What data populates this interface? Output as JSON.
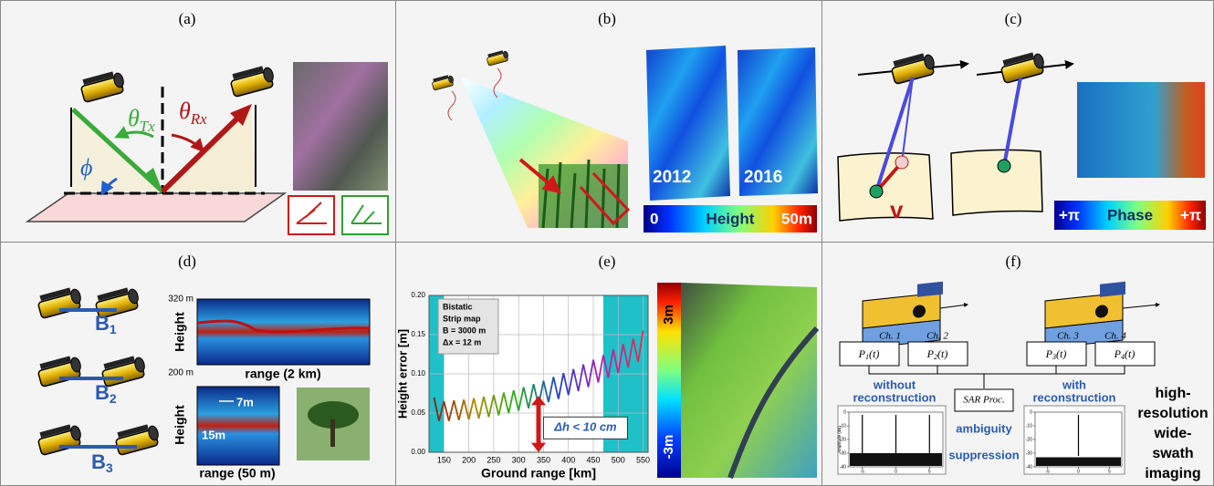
{
  "panels": {
    "a": {
      "label": "(a)",
      "theta_tx": {
        "symbol": "θ",
        "sub": "Tx"
      },
      "theta_rx": {
        "symbol": "θ",
        "sub": "Rx"
      },
      "phi": "ϕ"
    },
    "b": {
      "label": "(b)",
      "years": [
        "2012",
        "2016"
      ],
      "colorbar": {
        "min": "0",
        "title": "Height",
        "max": "50m"
      }
    },
    "c": {
      "label": "(c)",
      "velocity": "v",
      "colorbar": {
        "min": "+π",
        "title": "Phase",
        "max": "+π"
      }
    },
    "d": {
      "label": "(d)",
      "baselines": [
        {
          "symbol": "B",
          "sub": "1"
        },
        {
          "symbol": "B",
          "sub": "2"
        },
        {
          "symbol": "B",
          "sub": "3"
        }
      ],
      "top_plot": {
        "y_top": "320 m",
        "y_bottom": "200 m",
        "y_label": "Height",
        "x_label": "range (2 km)"
      },
      "bottom_plot": {
        "y_label": "Height",
        "dim_small": "7m",
        "dim_large": "15m",
        "x_label": "range (50 m)"
      }
    },
    "e": {
      "label": "(e)",
      "chart": {
        "type": "line",
        "inset_text": [
          "Bistatic",
          "Strip map",
          "B = 3000 m",
          "Δx = 12 m"
        ],
        "xlabel": "Ground range [km]",
        "ylabel": "Height error [m]",
        "annotation": "Δh < 10 cm",
        "xlim": [
          120,
          560
        ],
        "ylim": [
          0,
          0.2
        ],
        "xticks": [
          150,
          200,
          250,
          300,
          350,
          400,
          450,
          500,
          550
        ],
        "yticks": [
          {
            "value": 0,
            "label": "0.00"
          },
          {
            "value": 0.05,
            "label": "0.05"
          },
          {
            "value": 0.1,
            "label": "0.10"
          },
          {
            "value": 0.15,
            "label": "0.15"
          },
          {
            "value": 0.2,
            "label": "0.20"
          }
        ],
        "grid": true,
        "shaded": [
          [
            120,
            150
          ],
          [
            470,
            560
          ]
        ],
        "x": [
          130,
          140,
          150,
          160,
          170,
          180,
          190,
          200,
          210,
          220,
          230,
          240,
          250,
          260,
          270,
          280,
          290,
          300,
          310,
          320,
          330,
          340,
          350,
          360,
          370,
          380,
          390,
          400,
          410,
          420,
          430,
          440,
          450,
          460,
          470,
          480,
          490,
          500,
          510,
          520,
          530,
          540,
          550
        ],
        "values": [
          0.07,
          0.04,
          0.065,
          0.04,
          0.066,
          0.041,
          0.067,
          0.042,
          0.069,
          0.043,
          0.071,
          0.045,
          0.073,
          0.047,
          0.076,
          0.05,
          0.079,
          0.053,
          0.083,
          0.056,
          0.087,
          0.06,
          0.091,
          0.064,
          0.096,
          0.068,
          0.101,
          0.073,
          0.106,
          0.078,
          0.112,
          0.083,
          0.118,
          0.089,
          0.124,
          0.095,
          0.131,
          0.101,
          0.138,
          0.108,
          0.145,
          0.115,
          0.155
        ]
      },
      "colorbar": {
        "top": "3m",
        "bottom": "-3m"
      }
    },
    "f": {
      "label": "(f)",
      "channels": [
        "Ch. 1",
        "Ch. 2",
        "Ch. 3",
        "Ch. 4"
      ],
      "signals": [
        {
          "symbol": "P",
          "sub": "1",
          "arg": "(t)"
        },
        {
          "symbol": "P",
          "sub": "2",
          "arg": "(t)"
        },
        {
          "symbol": "P",
          "sub": "3",
          "arg": "(t)"
        },
        {
          "symbol": "P",
          "sub": "4",
          "arg": "(t)"
        }
      ],
      "without": [
        "without",
        "reconstruction"
      ],
      "with": [
        "with",
        "reconstruction"
      ],
      "processor": "SAR Proc.",
      "ambiguity": [
        "ambiguity",
        "suppression"
      ],
      "side_text": [
        "high-",
        "resolution",
        "wide-",
        "swath",
        "imaging"
      ],
      "mini_axis": {
        "ylabel": "Amplitude (dB)",
        "ylim": [
          -40,
          0
        ],
        "yticks": [
          0,
          -10,
          -20,
          -30,
          -40
        ],
        "xlim": [
          -7,
          7
        ],
        "xticks": [
          -5,
          0,
          5
        ]
      }
    }
  }
}
